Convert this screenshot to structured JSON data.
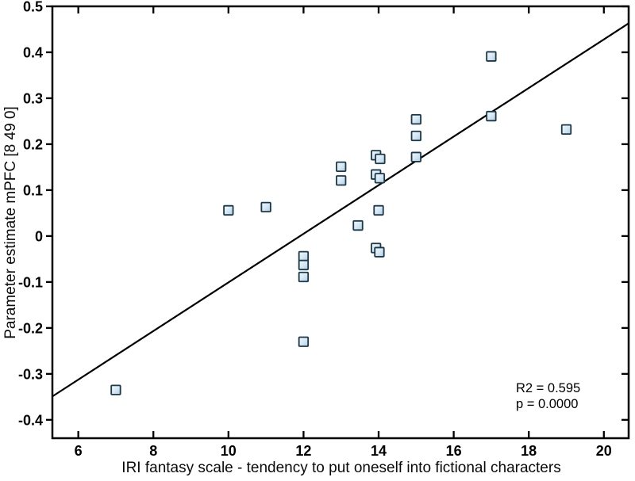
{
  "figure": {
    "background": "#ffffff",
    "axis_color": "#000000",
    "text_color": "#000000"
  },
  "annotation": {
    "r2_text": "R2 = 0.595",
    "p_text": "p = 0.0000"
  },
  "chart_data": {
    "type": "scatter",
    "title": "",
    "xlabel": "IRI fantasy scale - tendency to put oneself into fictional characters",
    "ylabel": "Parameter estimate mPFC [8 49 0]",
    "xlim": [
      5.31,
      20.66
    ],
    "ylim": [
      -0.44,
      0.5
    ],
    "xticks": [
      6,
      8,
      10,
      12,
      14,
      16,
      18,
      20
    ],
    "xtick_labels": [
      "6",
      "8",
      "10",
      "12",
      "14",
      "16",
      "18",
      "20"
    ],
    "yticks": [
      0.5,
      0.4,
      0.3,
      0.2,
      0.1,
      0,
      -0.1,
      -0.2,
      -0.3,
      -0.4
    ],
    "ytick_labels": [
      "0.5",
      "0.4",
      "0.3",
      "0.2",
      "0.1",
      "0",
      "-0.1",
      "-0.2",
      "-0.3",
      "-0.4"
    ],
    "grid": false,
    "legend": null,
    "points": [
      [
        7.0,
        -0.335
      ],
      [
        10.0,
        0.056
      ],
      [
        11.0,
        0.063
      ],
      [
        12.0,
        -0.044
      ],
      [
        12.0,
        -0.063
      ],
      [
        12.0,
        -0.089
      ],
      [
        12.0,
        -0.23
      ],
      [
        13.0,
        0.151
      ],
      [
        13.0,
        0.121
      ],
      [
        13.45,
        0.023
      ],
      [
        13.93,
        0.176
      ],
      [
        14.04,
        0.168
      ],
      [
        13.93,
        0.134
      ],
      [
        14.03,
        0.126
      ],
      [
        14.0,
        0.056
      ],
      [
        13.93,
        -0.026
      ],
      [
        14.02,
        -0.035
      ],
      [
        15.0,
        0.254
      ],
      [
        15.0,
        0.218
      ],
      [
        15.0,
        0.172
      ],
      [
        17.0,
        0.391
      ],
      [
        17.0,
        0.261
      ],
      [
        19.0,
        0.232
      ]
    ],
    "fit_line": {
      "x_start": 5.31,
      "y_start": -0.349,
      "x_end": 20.66,
      "y_end": 0.463,
      "slope": 0.0529,
      "intercept": -0.6295,
      "color": "#000000"
    },
    "stats": {
      "r2": 0.595,
      "p": 0.0
    },
    "marker": {
      "shape": "square",
      "size": 11.5,
      "fill_light": "#f2f8fc",
      "fill_mid": "#d7e8f3",
      "fill_dark": "#b0cfe3",
      "edge": "#1b3949"
    }
  }
}
